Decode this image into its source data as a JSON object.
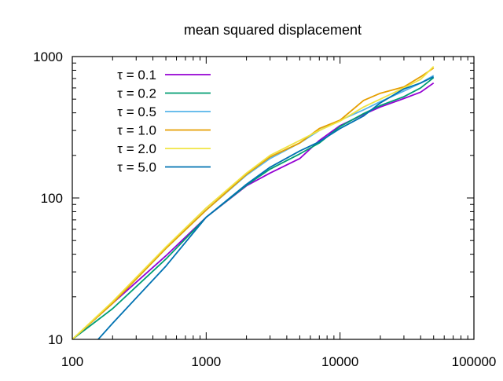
{
  "chart_data": {
    "type": "line",
    "title": "mean squared displacement",
    "xlabel": "",
    "ylabel": "",
    "xscale": "log",
    "yscale": "log",
    "xlim": [
      100,
      100000
    ],
    "ylim": [
      10,
      1000
    ],
    "xticks": [
      100,
      1000,
      10000,
      100000
    ],
    "xtick_labels": [
      "100",
      "1000",
      "10000",
      "100000"
    ],
    "yticks": [
      10,
      100,
      1000
    ],
    "ytick_labels": [
      "10",
      "100",
      "1000"
    ],
    "grid": false,
    "legend_position": "top-left",
    "series": [
      {
        "name": "τ = 0.1",
        "color": "#9400d3",
        "x": [
          100,
          200,
          500,
          1000,
          2000,
          3000,
          5000,
          7000,
          10000,
          15000,
          20000,
          30000,
          40000,
          50000
        ],
        "y": [
          10,
          18,
          39,
          73,
          122,
          150,
          190,
          255,
          325,
          390,
          440,
          505,
          560,
          650
        ]
      },
      {
        "name": "τ = 0.2",
        "color": "#009e73",
        "x": [
          100,
          200,
          500,
          1000,
          2000,
          3000,
          5000,
          7000,
          10000,
          15000,
          20000,
          30000,
          40000,
          50000
        ],
        "y": [
          10,
          16.5,
          37,
          73,
          123,
          160,
          205,
          245,
          320,
          395,
          450,
          520,
          600,
          710
        ]
      },
      {
        "name": "τ = 0.5",
        "color": "#56b4e9",
        "x": [
          100,
          200,
          500,
          1000,
          2000,
          3000,
          5000,
          7000,
          10000,
          15000,
          20000,
          30000,
          40000,
          50000
        ],
        "y": [
          10,
          18,
          44,
          82,
          145,
          190,
          245,
          300,
          355,
          420,
          480,
          570,
          650,
          735
        ]
      },
      {
        "name": "τ = 1.0",
        "color": "#e69f00",
        "x": [
          100,
          200,
          500,
          1000,
          2000,
          3000,
          5000,
          7000,
          10000,
          15000,
          20000,
          30000,
          40000,
          50000
        ],
        "y": [
          10,
          18,
          44,
          82,
          147,
          195,
          245,
          310,
          355,
          490,
          550,
          610,
          720,
          830
        ]
      },
      {
        "name": "τ = 2.0",
        "color": "#f0e442",
        "x": [
          100,
          200,
          500,
          1000,
          2000,
          3000,
          5000,
          7000,
          10000,
          15000,
          20000,
          30000,
          40000,
          50000
        ],
        "y": [
          10,
          18.5,
          45,
          85,
          150,
          200,
          255,
          300,
          350,
          440,
          500,
          600,
          690,
          850
        ]
      },
      {
        "name": "τ = 5.0",
        "color": "#0072b2",
        "x": [
          156,
          200,
          500,
          1000,
          2000,
          3000,
          5000,
          7000,
          10000,
          15000,
          20000,
          30000,
          40000,
          50000
        ],
        "y": [
          10,
          13,
          33,
          73,
          125,
          165,
          215,
          250,
          310,
          380,
          470,
          590,
          650,
          720
        ]
      }
    ]
  }
}
